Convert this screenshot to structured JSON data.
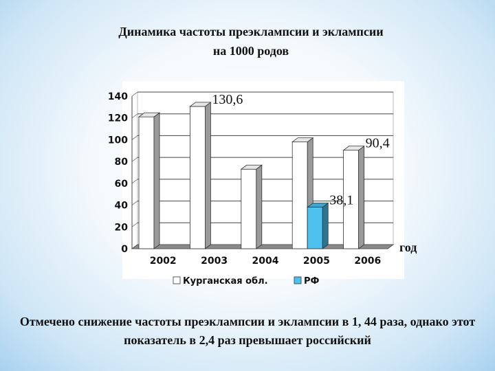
{
  "title_lines": [
    "Динамика частоты преэклампсии и эклампсии",
    "на 1000 родов"
  ],
  "note": "Отмечено снижение частоты преэклампсии и эклампсии в 1, 44 раза, однако этот показатель в 2,4 раз превышает российский",
  "chart_data": {
    "type": "bar",
    "categories": [
      "2002",
      "2003",
      "2004",
      "2005",
      "2006"
    ],
    "series": [
      {
        "name": "Курганская обл.",
        "values": [
          121,
          130.6,
          73,
          98,
          90.4
        ],
        "color": "#ffffff"
      },
      {
        "name": "РФ",
        "values": [
          null,
          null,
          null,
          38.1,
          null
        ],
        "color": "#4fc1ef"
      }
    ],
    "data_labels": [
      {
        "series": 0,
        "category": "2003",
        "text": "130,6"
      },
      {
        "series": 1,
        "category": "2005",
        "text": "38,1"
      },
      {
        "series": 0,
        "category": "2006",
        "text": "90,4"
      }
    ],
    "xlabel": "год",
    "ylabel": "",
    "ylim": [
      0,
      140
    ],
    "yticks": [
      0,
      20,
      40,
      60,
      80,
      100,
      120,
      140
    ],
    "grid": true,
    "legend_position": "bottom",
    "three_d": true
  }
}
